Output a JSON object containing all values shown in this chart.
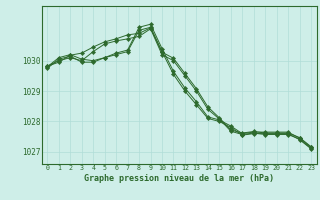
{
  "title": "Graphe pression niveau de la mer (hPa)",
  "bg_color": "#ceeee8",
  "plot_bg_color": "#ceeee8",
  "line_color": "#2d6a2d",
  "grid_color": "#b0ddd8",
  "ylim": [
    1026.6,
    1031.8
  ],
  "xlim": [
    -0.5,
    23.5
  ],
  "yticks": [
    1027,
    1028,
    1029,
    1030
  ],
  "xticks": [
    0,
    1,
    2,
    3,
    4,
    5,
    6,
    7,
    8,
    9,
    10,
    11,
    12,
    13,
    14,
    15,
    16,
    17,
    18,
    19,
    20,
    21,
    22,
    23
  ],
  "series": [
    [
      1029.8,
      1030.1,
      1030.2,
      1030.05,
      1030.0,
      1030.1,
      1030.2,
      1030.3,
      1031.0,
      1031.1,
      1030.3,
      1029.55,
      1029.0,
      1028.55,
      1028.1,
      1028.0,
      1027.8,
      1027.55,
      1027.6,
      1027.6,
      1027.6,
      1027.6,
      1027.4,
      1027.1
    ],
    [
      1029.75,
      1030.05,
      1030.15,
      1029.95,
      1029.95,
      1030.1,
      1030.25,
      1030.35,
      1031.1,
      1031.2,
      1030.4,
      1029.65,
      1029.1,
      1028.65,
      1028.15,
      1028.05,
      1027.85,
      1027.6,
      1027.65,
      1027.65,
      1027.65,
      1027.65,
      1027.45,
      1027.15
    ],
    [
      1029.82,
      1030.0,
      1030.1,
      1030.0,
      1030.3,
      1030.55,
      1030.65,
      1030.72,
      1030.8,
      1031.05,
      1030.2,
      1030.0,
      1029.5,
      1029.0,
      1028.4,
      1028.08,
      1027.68,
      1027.57,
      1027.62,
      1027.57,
      1027.57,
      1027.57,
      1027.42,
      1027.12
    ],
    [
      1029.82,
      1029.95,
      1030.18,
      1030.25,
      1030.45,
      1030.62,
      1030.72,
      1030.85,
      1030.9,
      1031.08,
      1030.28,
      1030.08,
      1029.58,
      1029.08,
      1028.48,
      1028.12,
      1027.72,
      1027.62,
      1027.67,
      1027.62,
      1027.62,
      1027.62,
      1027.47,
      1027.17
    ]
  ]
}
